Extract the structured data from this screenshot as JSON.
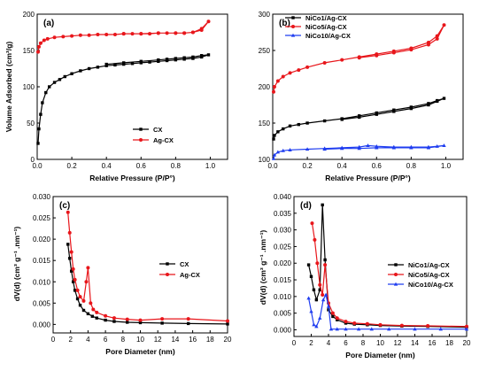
{
  "chart_data": [
    {
      "panel": "(a)",
      "type": "line",
      "xlabel": "Relative Pressure (P/P°)",
      "ylabel": "Volume Adsorbed (cm³/g)",
      "xlim": [
        0,
        1.1
      ],
      "ylim": [
        0,
        200
      ],
      "xticks": [
        "0.0",
        "0.2",
        "0.4",
        "0.6",
        "0.8",
        "1.0"
      ],
      "xtick_values": [
        0,
        0.2,
        0.4,
        0.6,
        0.8,
        1.0
      ],
      "yticks": [
        "0",
        "50",
        "100",
        "150",
        "200"
      ],
      "ytick_values": [
        0,
        50,
        100,
        150,
        200
      ],
      "legend_position": "bottom-right",
      "series": [
        {
          "name": "CX",
          "color": "#000000",
          "marker": "square",
          "x": [
            0.005,
            0.01,
            0.02,
            0.03,
            0.05,
            0.07,
            0.1,
            0.13,
            0.16,
            0.2,
            0.25,
            0.3,
            0.35,
            0.4,
            0.45,
            0.5,
            0.55,
            0.6,
            0.65,
            0.7,
            0.75,
            0.8,
            0.85,
            0.9,
            0.95,
            0.99,
            0.95,
            0.9,
            0.85,
            0.8,
            0.75,
            0.7,
            0.6,
            0.5,
            0.4
          ],
          "y": [
            22,
            42,
            62,
            78,
            92,
            100,
            106,
            110,
            114,
            118,
            122,
            125,
            127,
            129,
            130,
            131,
            132,
            133,
            134,
            135,
            136,
            137,
            138,
            139,
            141,
            144,
            143,
            141,
            140,
            139,
            138,
            137,
            135,
            133,
            131
          ]
        },
        {
          "name": "Ag-CX",
          "color": "#e8161b",
          "marker": "circle",
          "x": [
            0.005,
            0.01,
            0.02,
            0.04,
            0.06,
            0.1,
            0.15,
            0.2,
            0.25,
            0.3,
            0.35,
            0.4,
            0.45,
            0.5,
            0.55,
            0.6,
            0.65,
            0.7,
            0.75,
            0.8,
            0.85,
            0.9,
            0.95,
            0.99,
            0.95,
            0.9,
            0.85,
            0.8,
            0.7,
            0.6,
            0.5
          ],
          "y": [
            148,
            155,
            160,
            164,
            166,
            168,
            169,
            170,
            171,
            171,
            172,
            172,
            172,
            173,
            173,
            173,
            173,
            174,
            174,
            174,
            174,
            175,
            180,
            190,
            178,
            175,
            174,
            174,
            174,
            173,
            173
          ]
        }
      ]
    },
    {
      "panel": "(b)",
      "type": "line",
      "xlabel": "Relative Pressure (P/P°)",
      "ylabel": "",
      "xlim": [
        0,
        1.1
      ],
      "ylim": [
        100,
        300
      ],
      "xticks": [
        "0.0",
        "0.2",
        "0.4",
        "0.6",
        "0.8",
        "1.0"
      ],
      "xtick_values": [
        0,
        0.2,
        0.4,
        0.6,
        0.8,
        1.0
      ],
      "yticks": [
        "100",
        "150",
        "200",
        "250",
        "300"
      ],
      "ytick_values": [
        100,
        150,
        200,
        250,
        300
      ],
      "legend_position": "top-left",
      "series": [
        {
          "name": "NiCo1/Ag-CX",
          "color": "#000000",
          "marker": "square",
          "x": [
            0.005,
            0.01,
            0.03,
            0.06,
            0.1,
            0.15,
            0.2,
            0.3,
            0.4,
            0.5,
            0.6,
            0.7,
            0.8,
            0.9,
            0.95,
            0.99,
            0.95,
            0.9,
            0.8,
            0.7,
            0.6,
            0.5,
            0.4
          ],
          "y": [
            128,
            133,
            138,
            142,
            146,
            148,
            150,
            153,
            156,
            160,
            164,
            168,
            172,
            177,
            181,
            184,
            180,
            175,
            170,
            166,
            162,
            158,
            155
          ]
        },
        {
          "name": "NiCo5/Ag-CX",
          "color": "#e8161b",
          "marker": "circle",
          "x": [
            0.005,
            0.01,
            0.03,
            0.06,
            0.1,
            0.15,
            0.2,
            0.3,
            0.4,
            0.5,
            0.6,
            0.7,
            0.8,
            0.9,
            0.95,
            0.99,
            0.95,
            0.9,
            0.8,
            0.7,
            0.6,
            0.5
          ],
          "y": [
            193,
            200,
            208,
            214,
            219,
            223,
            227,
            233,
            237,
            241,
            245,
            249,
            253,
            261,
            270,
            285,
            266,
            258,
            251,
            247,
            243,
            240
          ]
        },
        {
          "name": "NiCo10/Ag-CX",
          "color": "#1f3df0",
          "marker": "triangle",
          "x": [
            0.005,
            0.01,
            0.03,
            0.06,
            0.1,
            0.2,
            0.3,
            0.4,
            0.5,
            0.55,
            0.6,
            0.7,
            0.8,
            0.9,
            0.95,
            0.99,
            0.9,
            0.8,
            0.7,
            0.6,
            0.5,
            0.4,
            0.3
          ],
          "y": [
            101,
            106,
            110,
            112,
            113,
            114,
            115,
            116,
            117,
            119,
            118,
            117,
            117,
            117,
            118,
            119,
            116,
            116,
            116,
            116,
            115,
            115,
            114
          ]
        }
      ]
    },
    {
      "panel": "(c)",
      "type": "line",
      "xlabel": "Pore Diameter (nm)",
      "ylabel": "dV(d) (cm³ g⁻¹ .nm⁻¹)",
      "xlim": [
        0,
        20
      ],
      "ylim": [
        -0.002,
        0.03
      ],
      "xticks": [
        "0",
        "2",
        "4",
        "6",
        "8",
        "10",
        "12",
        "14",
        "16",
        "18",
        "20"
      ],
      "xtick_values": [
        0,
        2,
        4,
        6,
        8,
        10,
        12,
        14,
        16,
        18,
        20
      ],
      "yticks": [
        "0.000",
        "0.005",
        "0.010",
        "0.015",
        "0.020",
        "0.025",
        "0.030"
      ],
      "ytick_values": [
        0,
        0.005,
        0.01,
        0.015,
        0.02,
        0.025,
        0.03
      ],
      "legend_position": "center-right",
      "series": [
        {
          "name": "CX",
          "color": "#000000",
          "marker": "square",
          "x": [
            1.7,
            1.9,
            2.1,
            2.3,
            2.5,
            2.8,
            3.1,
            3.5,
            4.0,
            4.5,
            5.0,
            6.0,
            7.0,
            8.5,
            10,
            12.5,
            15.5,
            20
          ],
          "y": [
            0.0188,
            0.0155,
            0.0125,
            0.01,
            0.008,
            0.006,
            0.0045,
            0.0033,
            0.0025,
            0.0019,
            0.0015,
            0.001,
            0.0007,
            0.0005,
            0.0004,
            0.0003,
            0.0002,
            0.0001
          ]
        },
        {
          "name": "Ag-CX",
          "color": "#e8161b",
          "marker": "circle",
          "x": [
            1.7,
            1.9,
            2.1,
            2.3,
            2.5,
            2.8,
            3.1,
            3.5,
            3.8,
            4.0,
            4.3,
            4.6,
            5.0,
            6.0,
            7.0,
            8.5,
            10,
            12.5,
            15.5,
            20
          ],
          "y": [
            0.0263,
            0.0215,
            0.017,
            0.013,
            0.0105,
            0.008,
            0.0065,
            0.0055,
            0.01,
            0.0133,
            0.005,
            0.0035,
            0.0028,
            0.002,
            0.0015,
            0.0012,
            0.001,
            0.0013,
            0.0013,
            0.0008
          ]
        }
      ]
    },
    {
      "panel": "(d)",
      "type": "line",
      "xlabel": "Pore Diameter (nm)",
      "ylabel": "dV(d) (cm³ g⁻¹ .nm⁻¹)",
      "xlim": [
        0,
        20
      ],
      "ylim": [
        -0.002,
        0.04
      ],
      "xticks": [
        "0",
        "2",
        "4",
        "6",
        "8",
        "10",
        "12",
        "14",
        "16",
        "18",
        "20"
      ],
      "xtick_values": [
        0,
        2,
        4,
        6,
        8,
        10,
        12,
        14,
        16,
        18,
        20
      ],
      "yticks": [
        "0.000",
        "0.005",
        "0.010",
        "0.015",
        "0.020",
        "0.025",
        "0.030",
        "0.035",
        "0.040"
      ],
      "ytick_values": [
        0,
        0.005,
        0.01,
        0.015,
        0.02,
        0.025,
        0.03,
        0.035,
        0.04
      ],
      "legend_position": "center-right",
      "series": [
        {
          "name": "NiCo1/Ag-CX",
          "color": "#000000",
          "marker": "square",
          "x": [
            1.7,
            2.0,
            2.3,
            2.6,
            3.0,
            3.3,
            3.6,
            4.0,
            4.5,
            5.0,
            6.0,
            7.0,
            8.5,
            10,
            12.5,
            15.5,
            20
          ],
          "y": [
            0.0195,
            0.016,
            0.012,
            0.009,
            0.012,
            0.0375,
            0.021,
            0.006,
            0.004,
            0.003,
            0.002,
            0.0017,
            0.0015,
            0.0013,
            0.0011,
            0.001,
            0.0008
          ]
        },
        {
          "name": "NiCo5/Ag-CX",
          "color": "#e8161b",
          "marker": "circle",
          "x": [
            2.1,
            2.4,
            2.7,
            3.0,
            3.3,
            3.6,
            4.0,
            4.5,
            5.0,
            6.0,
            7.0,
            8.5,
            10,
            12.5,
            15.5,
            20
          ],
          "y": [
            0.032,
            0.027,
            0.02,
            0.0135,
            0.0105,
            0.0195,
            0.008,
            0.005,
            0.0035,
            0.0025,
            0.002,
            0.0018,
            0.0015,
            0.0013,
            0.0012,
            0.001
          ]
        },
        {
          "name": "NiCo10/Ag-CX",
          "color": "#1f3df0",
          "marker": "triangle",
          "x": [
            1.7,
            2.0,
            2.3,
            2.6,
            3.0,
            3.4,
            3.7,
            4.0,
            4.3,
            5.0,
            6.0,
            7.5,
            9,
            11,
            14,
            17,
            20
          ],
          "y": [
            0.0095,
            0.0055,
            0.0015,
            0.001,
            0.0035,
            0.009,
            0.0105,
            0.007,
            0.0002,
            0.0002,
            0.0002,
            0.0002,
            0.0002,
            0.0002,
            0.0002,
            0.0002,
            0.0002
          ]
        }
      ]
    }
  ]
}
